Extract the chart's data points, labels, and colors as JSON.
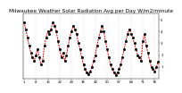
{
  "title": "Milwaukee Weather Solar Radiation Avg per Day W/m2/minute",
  "values": [
    4.8,
    4.2,
    3.5,
    2.8,
    2.2,
    1.8,
    1.5,
    2.0,
    2.5,
    1.8,
    1.2,
    1.5,
    2.8,
    3.5,
    4.0,
    3.8,
    4.2,
    4.8,
    4.5,
    4.0,
    3.2,
    2.5,
    1.8,
    2.2,
    1.5,
    2.0,
    2.8,
    3.5,
    4.0,
    4.5,
    4.2,
    3.8,
    3.0,
    2.5,
    1.8,
    1.2,
    0.8,
    0.5,
    0.4,
    0.6,
    1.0,
    1.5,
    2.0,
    2.8,
    3.5,
    4.0,
    4.5,
    4.0,
    3.2,
    2.5,
    1.8,
    1.2,
    0.8,
    0.5,
    0.3,
    0.5,
    0.8,
    1.2,
    1.8,
    2.5,
    3.2,
    3.8,
    4.2,
    3.8,
    3.5,
    3.0,
    2.5,
    2.0,
    1.8,
    1.5,
    3.2,
    3.8,
    2.8,
    2.2,
    1.5,
    1.0,
    0.8,
    0.6,
    1.0,
    1.4
  ],
  "ylim": [
    0,
    5.5
  ],
  "yticks": [
    1,
    2,
    3,
    4,
    5
  ],
  "ytick_labels": [
    "1",
    "2",
    "3",
    "4",
    "5"
  ],
  "line_color": "#cc0000",
  "line_style": "--",
  "marker": "s",
  "marker_color": "#000000",
  "bg_color": "#ffffff",
  "grid_color": "#aaaaaa",
  "title_fontsize": 4.2,
  "tick_fontsize": 2.8,
  "n_points": 80
}
